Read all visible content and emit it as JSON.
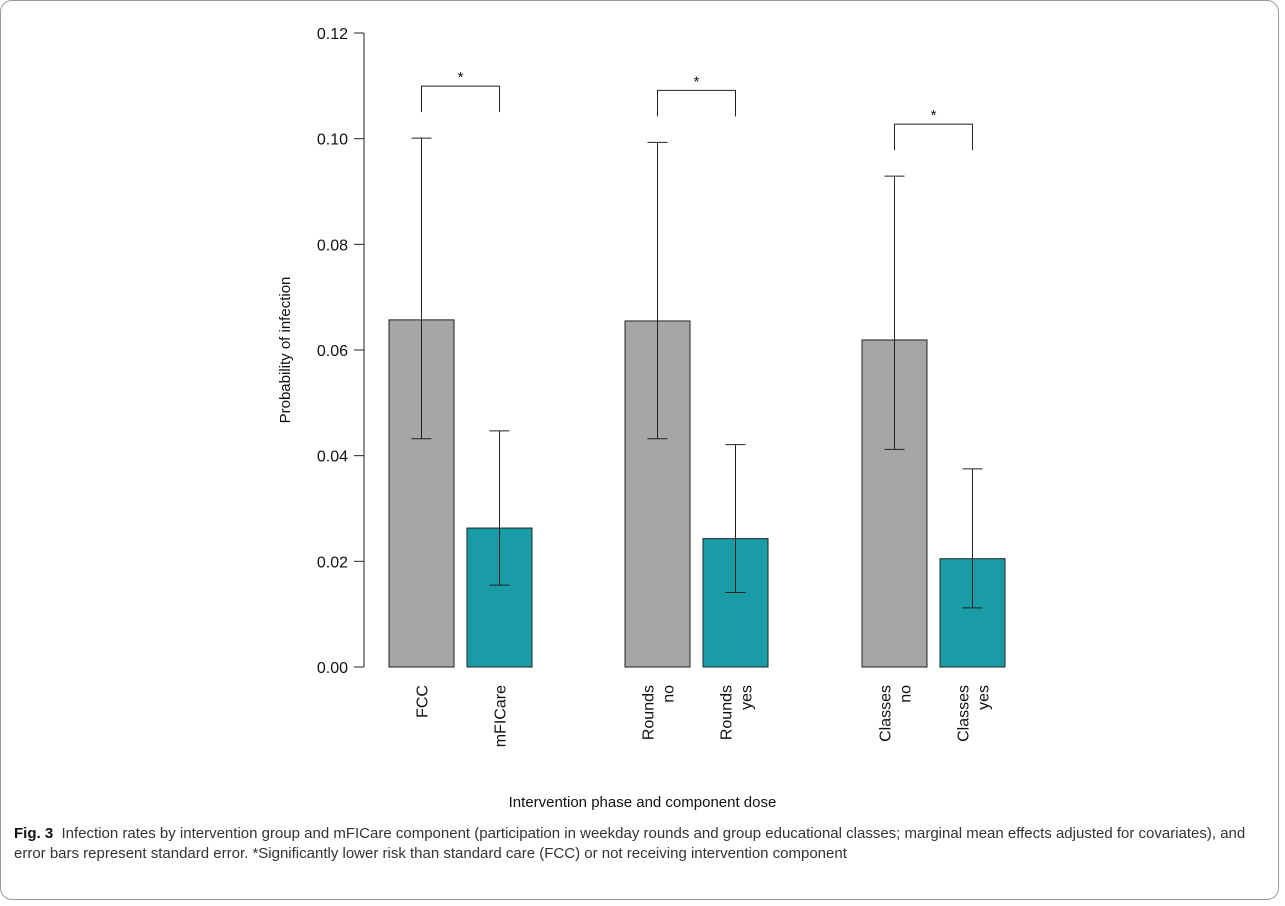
{
  "chart_data": {
    "type": "bar",
    "title": "",
    "xlabel": "Intervention phase and component dose",
    "ylabel": "Probability of infection",
    "ylim": [
      0,
      0.12
    ],
    "yticks": [
      0.0,
      0.02,
      0.04,
      0.06,
      0.08,
      0.1,
      0.12
    ],
    "ytick_labels": [
      "0.00",
      "0.02",
      "0.04",
      "0.06",
      "0.08",
      "0.10",
      "0.12"
    ],
    "groups": [
      {
        "bars": [
          {
            "label": [
              "FCC"
            ],
            "value": 0.0657,
            "lower": 0.0432,
            "upper": 0.1001,
            "color": "#a6a6a6"
          },
          {
            "label": [
              "mFICare"
            ],
            "value": 0.0263,
            "lower": 0.0155,
            "upper": 0.0447,
            "color": "#1a9ca6"
          }
        ],
        "significance": "*"
      },
      {
        "bars": [
          {
            "label": [
              "Rounds",
              "no"
            ],
            "value": 0.0655,
            "lower": 0.0432,
            "upper": 0.0993,
            "color": "#a6a6a6"
          },
          {
            "label": [
              "Rounds",
              "yes"
            ],
            "value": 0.0243,
            "lower": 0.0141,
            "upper": 0.0421,
            "color": "#1a9ca6"
          }
        ],
        "significance": "*"
      },
      {
        "bars": [
          {
            "label": [
              "Classes",
              "no"
            ],
            "value": 0.0619,
            "lower": 0.0412,
            "upper": 0.0929,
            "color": "#a6a6a6"
          },
          {
            "label": [
              "Classes",
              "yes"
            ],
            "value": 0.0205,
            "lower": 0.0112,
            "upper": 0.0375,
            "color": "#1a9ca6"
          }
        ],
        "significance": "*"
      }
    ],
    "grid": false,
    "legend": "none"
  },
  "caption": {
    "fig_label": "Fig. 3",
    "text": "Infection rates by intervention group and mFICare component (participation in weekday rounds and group educational classes; marginal mean effects adjusted for covariates), and error bars represent standard error. *Significantly lower risk than standard care (FCC) or not receiving intervention component"
  }
}
